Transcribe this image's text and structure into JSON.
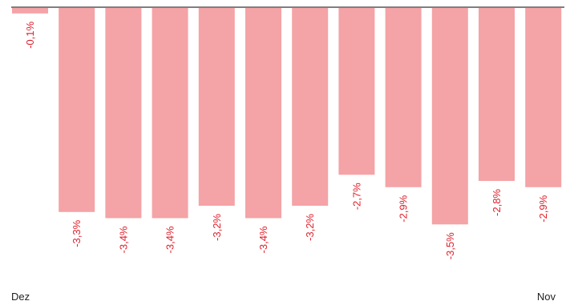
{
  "chart_data": {
    "type": "bar",
    "categories": [
      "Dez",
      "",
      "",
      "",
      "",
      "",
      "",
      "",
      "",
      "",
      "",
      "Nov"
    ],
    "values": [
      -0.1,
      -3.3,
      -3.4,
      -3.4,
      -3.2,
      -3.4,
      -3.2,
      -2.7,
      -2.9,
      -3.5,
      -2.8,
      -2.9
    ],
    "data_labels": [
      "-0,1%",
      "-3,3%",
      "-3,4%",
      "-3,4%",
      "-3,2%",
      "-3,4%",
      "-3,2%",
      "-2,7%",
      "-2,9%",
      "-3,5%",
      "-2,8%",
      "-2,9%"
    ],
    "tick_labels": {
      "first": "Dez",
      "last": "Nov"
    },
    "ylim": [
      -3.6,
      0
    ],
    "grid": false,
    "legend": "none",
    "colors": {
      "bar": "#f4a3a6",
      "label": "#e0202b",
      "axis": "#7f7f7f",
      "tick_text": "#222222"
    }
  }
}
